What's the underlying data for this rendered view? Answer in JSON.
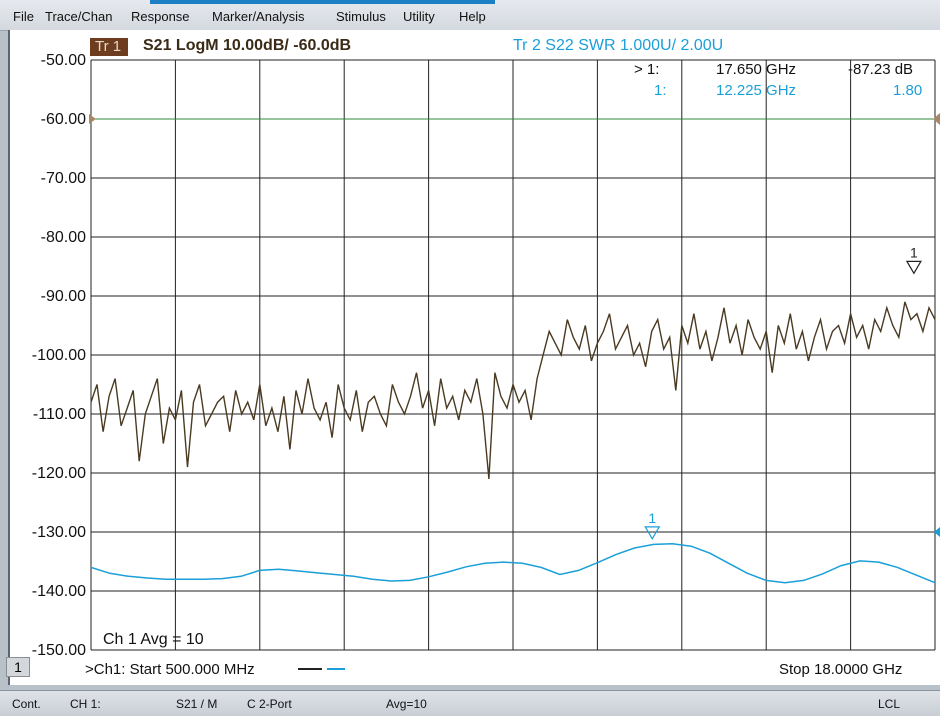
{
  "menu": [
    "File",
    "Trace/Chan",
    "Response",
    "Marker/Analysis",
    "Stimulus",
    "Utility",
    "Help"
  ],
  "trace1": {
    "tag": "Tr 1",
    "desc": "S21 LogM 10.00dB/  -60.0dB",
    "color": "#4a3a22"
  },
  "trace2": {
    "desc": "Tr 2   S22 SWR 1.000U/  2.00U",
    "color": "#1a9fd8"
  },
  "markers": [
    {
      "label": "> 1:",
      "freq": "17.650 GHz",
      "value": "-87.23 dB",
      "color": "#111111"
    },
    {
      "label": "1:",
      "freq": "12.225 GHz",
      "value": "1.80",
      "color": "#1a9fd8"
    }
  ],
  "y_axis": [
    "-50.00",
    "-60.00",
    "-70.00",
    "-80.00",
    "-90.00",
    "-100.00",
    "-110.00",
    "-120.00",
    "-130.00",
    "-140.00",
    "-150.00"
  ],
  "avg_label": "Ch 1 Avg =   10",
  "channel_number": "1",
  "start_label": ">Ch1: Start  500.000 MHz",
  "stop_label": "Stop  18.0000 GHz",
  "marker_flag": "1",
  "statusbar": {
    "mode": "Cont.",
    "ch": "CH 1:",
    "meas": "S21 / M",
    "cal": "C  2-Port",
    "avg": "Avg=10",
    "remote": "LCL"
  },
  "chart_data": {
    "type": "line",
    "xlabel": "",
    "ylabel": "",
    "x_range": [
      "500.000 MHz",
      "18.0000 GHz"
    ],
    "ylim": [
      -150,
      -50
    ],
    "grid": true,
    "series": [
      {
        "name": "S21 LogM",
        "color": "#4a3a22",
        "y": [
          -108,
          -105,
          -113,
          -107,
          -104,
          -112,
          -109,
          -106,
          -118,
          -110,
          -107,
          -104,
          -115,
          -109,
          -111,
          -106,
          -119,
          -108,
          -105,
          -112,
          -110,
          -108,
          -107,
          -113,
          -106,
          -110,
          -108,
          -111,
          -105,
          -112,
          -109,
          -113,
          -107,
          -116,
          -106,
          -110,
          -104,
          -109,
          -111,
          -108,
          -114,
          -105,
          -109,
          -111,
          -106,
          -113,
          -108,
          -107,
          -110,
          -112,
          -105,
          -108,
          -110,
          -107,
          -103,
          -109,
          -106,
          -112,
          -104,
          -109,
          -107,
          -111,
          -106,
          -108,
          -104,
          -110,
          -121,
          -103,
          -107,
          -109,
          -105,
          -108,
          -106,
          -111,
          -104,
          -100,
          -96,
          -98,
          -100,
          -94,
          -97,
          -99,
          -95,
          -101,
          -98,
          -96,
          -93,
          -99,
          -97,
          -95,
          -100,
          -98,
          -102,
          -96,
          -94,
          -99,
          -97,
          -106,
          -95,
          -98,
          -93,
          -99,
          -96,
          -101,
          -97,
          -92,
          -98,
          -95,
          -100,
          -94,
          -97,
          -99,
          -96,
          -103,
          -95,
          -98,
          -93,
          -99,
          -96,
          -101,
          -97,
          -94,
          -99,
          -96,
          -95,
          -98,
          -93,
          -97,
          -95,
          -99,
          -94,
          -96,
          -92,
          -95,
          -97,
          -91,
          -94,
          -93,
          -96,
          -92,
          -94
        ]
      },
      {
        "name": "S22 SWR",
        "color": "#1a9fd8",
        "y": [
          -136,
          -137,
          -137.5,
          -137.8,
          -138,
          -138,
          -138,
          -137.9,
          -137.5,
          -136.5,
          -136.3,
          -136.6,
          -136.9,
          -137.2,
          -137.5,
          -138,
          -138.3,
          -138.2,
          -137.6,
          -136.8,
          -135.9,
          -135.3,
          -135.1,
          -135.3,
          -136,
          -137.2,
          -136.5,
          -135.2,
          -133.8,
          -132.7,
          -132.1,
          -132,
          -132.4,
          -133.6,
          -135.3,
          -137,
          -138.2,
          -138.6,
          -138.2,
          -137.1,
          -135.7,
          -134.9,
          -135.1,
          -136,
          -137.3,
          -138.6
        ]
      }
    ]
  }
}
